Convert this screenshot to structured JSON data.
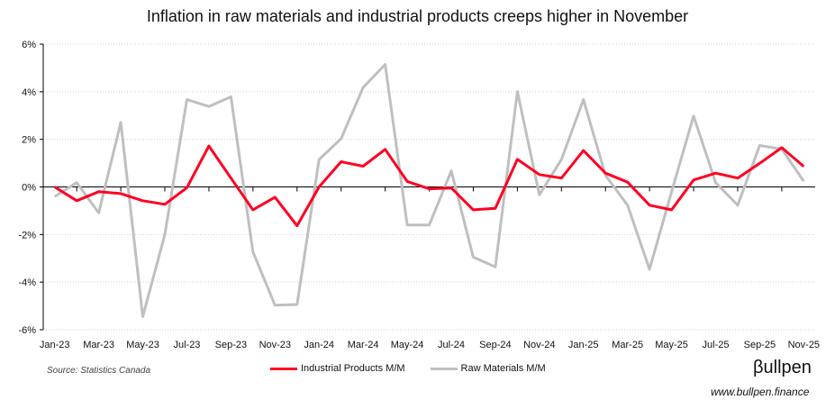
{
  "chart_data": {
    "type": "line",
    "title": "Inflation in raw materials and industrial products creeps higher in November",
    "xlabel": "",
    "ylabel": "",
    "ylim": [
      -6,
      6
    ],
    "y_ticks": [
      "-6%",
      "-4%",
      "-2%",
      "0%",
      "2%",
      "4%",
      "6%"
    ],
    "y_tick_values": [
      -6,
      -4,
      -2,
      0,
      2,
      4,
      6
    ],
    "grid": true,
    "legend": "bottom",
    "x": [
      "Jan-23",
      "Feb-23",
      "Mar-23",
      "Apr-23",
      "May-23",
      "Jun-23",
      "Jul-23",
      "Aug-23",
      "Sep-23",
      "Oct-23",
      "Nov-23",
      "Dec-23",
      "Jan-24",
      "Feb-24",
      "Mar-24",
      "Apr-24",
      "May-24",
      "Jun-24",
      "Jul-24",
      "Aug-24",
      "Sep-24",
      "Oct-24",
      "Nov-24",
      "Dec-24",
      "Jan-25",
      "Feb-25",
      "Mar-25",
      "Apr-25",
      "May-25",
      "Jun-25",
      "Jul-25",
      "Aug-25",
      "Sep-25",
      "Oct-25",
      "Nov-25"
    ],
    "x_tick_labels": [
      "Jan-23",
      "Mar-23",
      "May-23",
      "Jul-23",
      "Sep-23",
      "Nov-23",
      "Jan-24",
      "Mar-24",
      "May-24",
      "Jul-24",
      "Sep-24",
      "Nov-24",
      "Jan-25",
      "Mar-25",
      "May-25",
      "Jul-25",
      "Sep-25",
      "Nov-25"
    ],
    "series": [
      {
        "name": "Industrial Products M/M",
        "color": "#ff0022",
        "values": [
          0.0,
          -0.58,
          -0.2,
          -0.28,
          -0.58,
          -0.73,
          -0.03,
          1.72,
          0.37,
          -0.96,
          -0.43,
          -1.63,
          0.0,
          1.06,
          0.87,
          1.58,
          0.23,
          -0.08,
          -0.04,
          -0.96,
          -0.9,
          1.16,
          0.52,
          0.37,
          1.53,
          0.58,
          0.2,
          -0.77,
          -0.96,
          0.29,
          0.58,
          0.37,
          0.99,
          1.65,
          0.86
        ]
      },
      {
        "name": "Raw Materials M/M",
        "color": "#bfbfbf",
        "values": [
          -0.4,
          0.18,
          -1.09,
          2.71,
          -5.45,
          -2.0,
          3.67,
          3.38,
          3.79,
          -2.73,
          -4.97,
          -4.94,
          1.15,
          2.03,
          4.18,
          5.15,
          -1.6,
          -1.6,
          0.67,
          -2.95,
          -3.36,
          4.01,
          -0.33,
          1.15,
          3.67,
          0.49,
          -0.77,
          -3.46,
          -0.2,
          2.98,
          0.18,
          -0.77,
          1.74,
          1.59,
          0.24
        ]
      }
    ]
  },
  "source": "Source: Statistics Canada",
  "brand": {
    "logo": "βullpen",
    "website": "www.bullpen.finance"
  }
}
